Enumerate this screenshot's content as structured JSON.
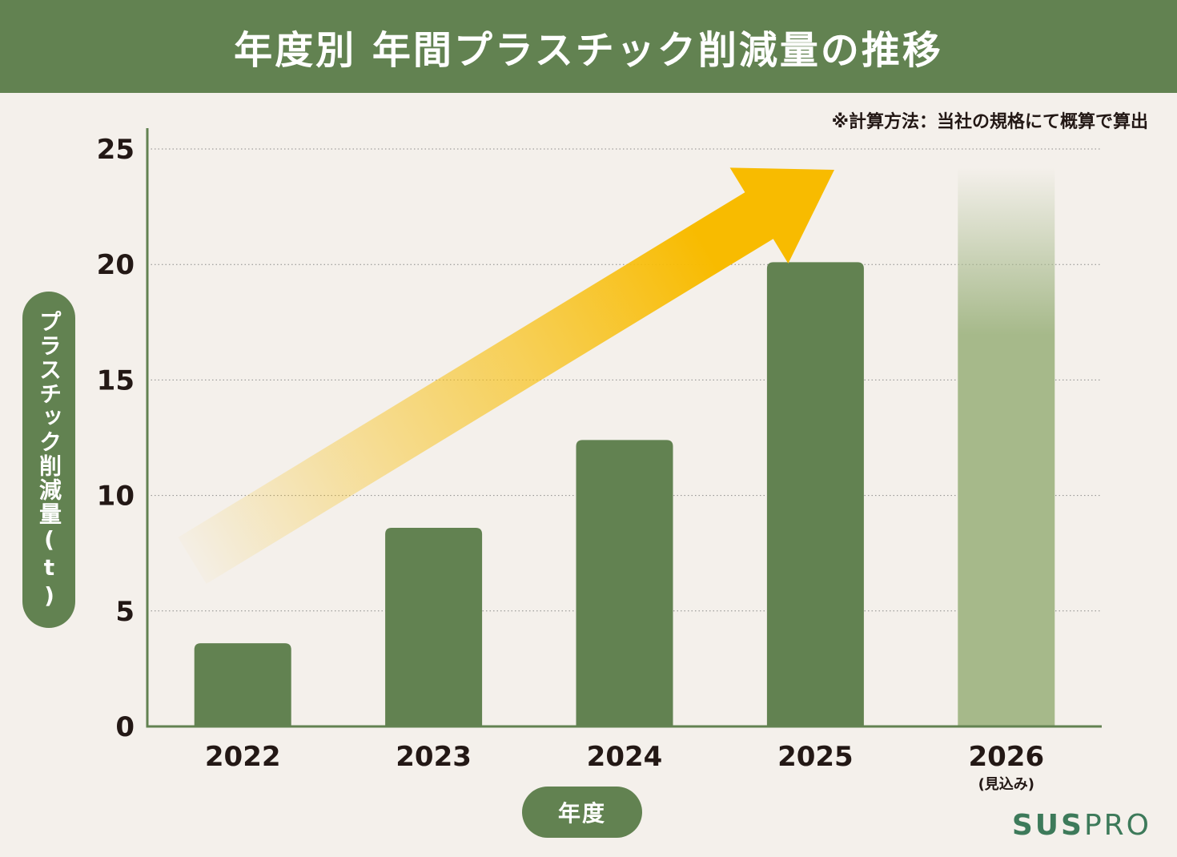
{
  "header": {
    "title": "年度別 年間プラスチック削減量の推移"
  },
  "note": "※計算方法：当社の規格にて概算で算出",
  "logo": {
    "part1": "SUS",
    "part2": "PRO"
  },
  "chart_data": {
    "type": "bar",
    "title": "年度別 年間プラスチック削減量の推移",
    "xlabel": "年度",
    "ylabel": "プラスチック削減量(t)",
    "categories": [
      "2022",
      "2023",
      "2024",
      "2025",
      "2026"
    ],
    "category_sublabels": [
      "",
      "",
      "",
      "",
      "(見込み)"
    ],
    "values": [
      3.6,
      8.6,
      12.4,
      20.1,
      24.2
    ],
    "projected": [
      false,
      false,
      false,
      false,
      true
    ],
    "ylim": [
      0,
      25
    ],
    "yticks": [
      0,
      5,
      10,
      15,
      20,
      25
    ],
    "grid": true,
    "colors": {
      "bar": "#628251",
      "projected": "#a6b98a",
      "arrow": "#f8bb00",
      "axis": "#628251",
      "text": "#231815"
    },
    "annotations": [
      {
        "type": "trend-arrow",
        "from": "2022",
        "to": "2025"
      }
    ]
  }
}
